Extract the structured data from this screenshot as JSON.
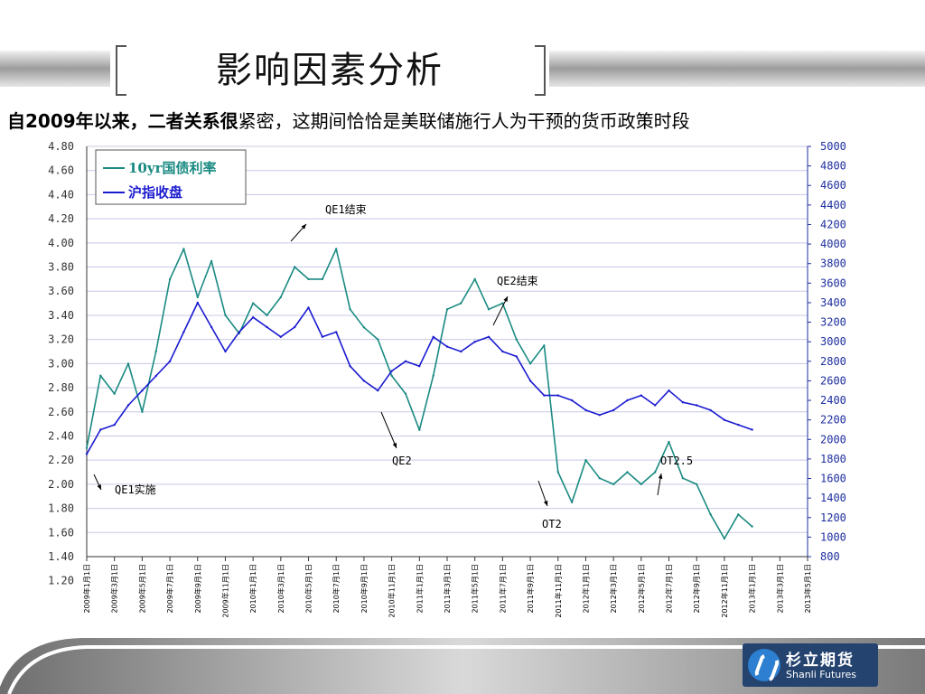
{
  "slide": {
    "title": "影响因素分析",
    "subtitle_bold": "自2009年以来，二者关系很",
    "subtitle_rest": "紧密，这期间恰恰是美联储施行人为干预的货币政策时段"
  },
  "logo": {
    "cn": "杉立期货",
    "en": "Shanli Futures"
  },
  "colors": {
    "bond": "#1a8a82",
    "index": "#1a1ad0",
    "grid": "#c8c8e6",
    "band": "#9c9c9c"
  },
  "chart_data": {
    "type": "line",
    "title": "",
    "x_tick_labels": [
      "2009年1月1日",
      "2009年3月1日",
      "2009年5月1日",
      "2009年7月1日",
      "2009年9月1日",
      "2009年11月1日",
      "2010年1月1日",
      "2010年3月1日",
      "2010年5月1日",
      "2010年7月1日",
      "2010年9月1日",
      "2010年11月1日",
      "2011年1月1日",
      "2011年3月1日",
      "2011年5月1日",
      "2011年7月1日",
      "2011年9月1日",
      "2011年11月1日",
      "2012年1月1日",
      "2012年3月1日",
      "2012年5月1日",
      "2012年7月1日",
      "2012年9月1日",
      "2012年11月1日",
      "2013年1月1日",
      "2013年3月1日",
      "2013年5月1日"
    ],
    "y_left": {
      "range": [
        1.4,
        4.8
      ],
      "ticks": [
        "4.80",
        "4.60",
        "4.40",
        "4.20",
        "4.00",
        "3.80",
        "3.60",
        "3.40",
        "3.20",
        "3.00",
        "2.80",
        "2.60",
        "2.40",
        "2.20",
        "2.00",
        "1.80",
        "1.60",
        "1.40",
        "1.20"
      ]
    },
    "y_right": {
      "range": [
        800,
        5000
      ],
      "ticks": [
        "5000",
        "4800",
        "4600",
        "4400",
        "4200",
        "4000",
        "3800",
        "3600",
        "3400",
        "3200",
        "3000",
        "2800",
        "2600",
        "2400",
        "2200",
        "2000",
        "1800",
        "1600",
        "1400",
        "1200",
        "1000",
        "800"
      ]
    },
    "grid": true,
    "legend_position": "top-left",
    "series": [
      {
        "name": "10yr国债利率",
        "axis": "left",
        "x": [
          0,
          0.5,
          1,
          1.5,
          2,
          2.5,
          3,
          3.5,
          4,
          4.5,
          5,
          5.5,
          6,
          6.5,
          7,
          7.5,
          8,
          8.5,
          9,
          9.5,
          10,
          10.5,
          11,
          11.5,
          12,
          12.5,
          13,
          13.5,
          14,
          14.5,
          15,
          15.5,
          16,
          16.5,
          17,
          17.5,
          18,
          18.5,
          19,
          19.5,
          20,
          20.5,
          21,
          21.5,
          22,
          22.5,
          23,
          23.5,
          24
        ],
        "values": [
          2.3,
          2.9,
          2.75,
          3.0,
          2.6,
          3.1,
          3.7,
          3.95,
          3.55,
          3.85,
          3.4,
          3.25,
          3.5,
          3.4,
          3.55,
          3.8,
          3.7,
          3.7,
          3.95,
          3.45,
          3.3,
          3.2,
          2.9,
          2.75,
          2.45,
          2.9,
          3.45,
          3.5,
          3.7,
          3.45,
          3.5,
          3.2,
          3.0,
          3.15,
          2.1,
          1.85,
          2.2,
          2.05,
          2.0,
          2.1,
          2.0,
          2.1,
          2.35,
          2.05,
          2.0,
          1.75,
          1.55,
          1.75,
          1.65
        ]
      },
      {
        "name": "沪指收盘",
        "axis": "right",
        "x": [
          0,
          0.5,
          1,
          1.5,
          2,
          2.5,
          3,
          3.5,
          4,
          4.5,
          5,
          5.5,
          6,
          6.5,
          7,
          7.5,
          8,
          8.5,
          9,
          9.5,
          10,
          10.5,
          11,
          11.5,
          12,
          12.5,
          13,
          13.5,
          14,
          14.5,
          15,
          15.5,
          16,
          16.5,
          17,
          17.5,
          18,
          18.5,
          19,
          19.5,
          20,
          20.5,
          21,
          21.5,
          22,
          22.5,
          23,
          23.5,
          24
        ],
        "values": [
          1850,
          2100,
          2150,
          2350,
          2500,
          2650,
          2800,
          3100,
          3400,
          3150,
          2900,
          3100,
          3250,
          3150,
          3050,
          3150,
          3350,
          3050,
          3100,
          2750,
          2600,
          2500,
          2700,
          2800,
          2750,
          3050,
          2950,
          2900,
          3000,
          3050,
          2900,
          2850,
          2600,
          2450,
          2450,
          2400,
          2300,
          2250,
          2300,
          2400,
          2450,
          2350,
          2500,
          2380,
          2350,
          2300,
          2200,
          2150,
          2100
        ]
      }
    ],
    "annotations": [
      "QE1实施",
      "QE1结束",
      "QE2",
      "QE2结束",
      "OT2",
      "OT2.5"
    ]
  }
}
